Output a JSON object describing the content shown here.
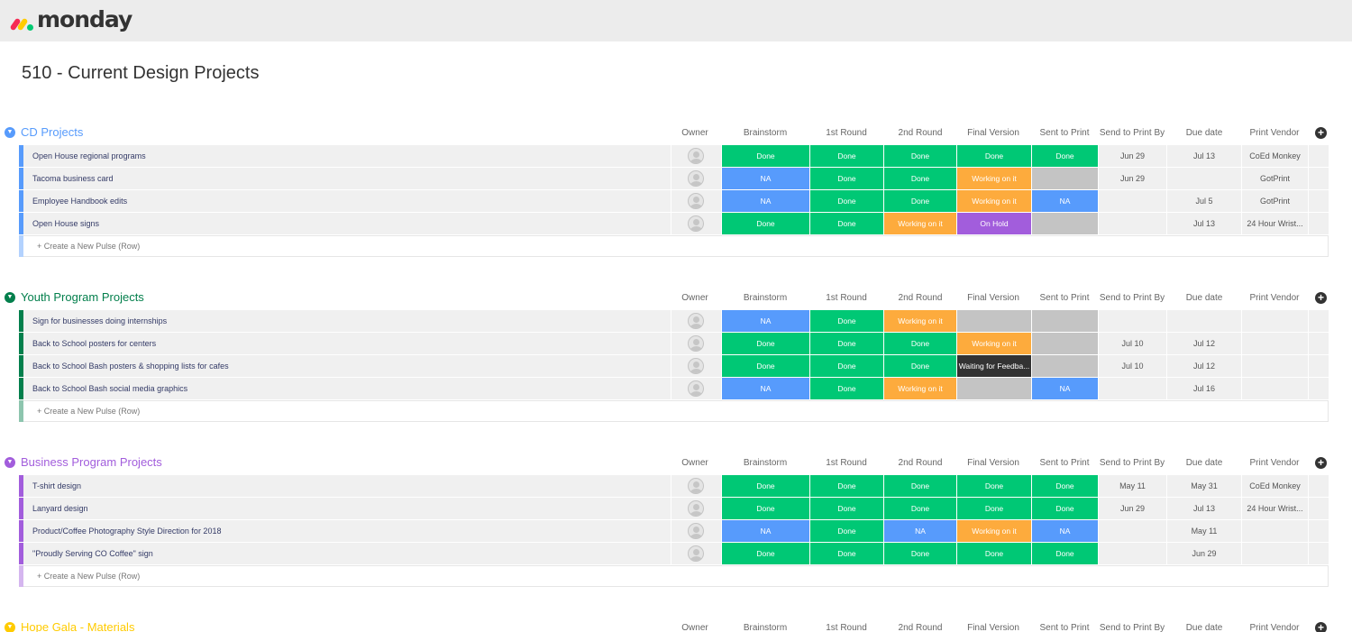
{
  "app": {
    "logo_text": "monday",
    "board_title": "510 - Current Design Projects"
  },
  "colors": {
    "done": "#00c875",
    "na": "#579bfc",
    "working": "#fdab3d",
    "on_hold": "#a25ddc",
    "waiting": "#333333",
    "empty": "#c4c4c4"
  },
  "columns": [
    "Owner",
    "Brainstorm",
    "1st Round",
    "2nd Round",
    "Final Version",
    "Sent to Print",
    "Send to Print By",
    "Due date",
    "Print Vendor"
  ],
  "create_label": "+ Create a New Pulse (Row)",
  "groups": [
    {
      "name": "CD Projects",
      "color": "#579bfc",
      "rows": [
        {
          "name": "Open House regional programs",
          "status": [
            "Done",
            "Done",
            "Done",
            "Done",
            "Done"
          ],
          "send_by": "Jun 29",
          "due": "Jul 13",
          "vendor": "CoEd Monkey"
        },
        {
          "name": "Tacoma business card",
          "status": [
            "NA",
            "Done",
            "Done",
            "Working on it",
            ""
          ],
          "send_by": "Jun 29",
          "due": "",
          "vendor": "GotPrint"
        },
        {
          "name": "Employee Handbook edits",
          "status": [
            "NA",
            "Done",
            "Done",
            "Working on it",
            "NA"
          ],
          "send_by": "",
          "due": "Jul 5",
          "vendor": "GotPrint"
        },
        {
          "name": "Open House signs",
          "status": [
            "Done",
            "Done",
            "Working on it",
            "On Hold",
            ""
          ],
          "send_by": "",
          "due": "Jul 13",
          "vendor": "24 Hour Wrist..."
        }
      ]
    },
    {
      "name": "Youth Program Projects",
      "color": "#037f4c",
      "rows": [
        {
          "name": "Sign for businesses doing internships",
          "status": [
            "NA",
            "Done",
            "Working on it",
            "",
            ""
          ],
          "send_by": "",
          "due": "",
          "vendor": ""
        },
        {
          "name": "Back to School posters for centers",
          "status": [
            "Done",
            "Done",
            "Done",
            "Working on it",
            ""
          ],
          "send_by": "Jul 10",
          "due": "Jul 12",
          "vendor": ""
        },
        {
          "name": "Back to School Bash posters & shopping lists for cafes",
          "status": [
            "Done",
            "Done",
            "Done",
            "Waiting for Feedba...",
            ""
          ],
          "send_by": "Jul 10",
          "due": "Jul 12",
          "vendor": ""
        },
        {
          "name": "Back to School Bash social media graphics",
          "status": [
            "NA",
            "Done",
            "Working on it",
            "",
            "NA"
          ],
          "send_by": "",
          "due": "Jul 16",
          "vendor": ""
        }
      ]
    },
    {
      "name": "Business Program Projects",
      "color": "#a25ddc",
      "rows": [
        {
          "name": "T-shirt design",
          "status": [
            "Done",
            "Done",
            "Done",
            "Done",
            "Done"
          ],
          "send_by": "May 11",
          "due": "May 31",
          "vendor": "CoEd Monkey"
        },
        {
          "name": "Lanyard design",
          "status": [
            "Done",
            "Done",
            "Done",
            "Done",
            "Done"
          ],
          "send_by": "Jun 29",
          "due": "Jul 13",
          "vendor": "24 Hour Wrist..."
        },
        {
          "name": "Product/Coffee Photography Style Direction for 2018",
          "status": [
            "NA",
            "Done",
            "NA",
            "Working on it",
            "NA"
          ],
          "send_by": "",
          "due": "May 11",
          "vendor": ""
        },
        {
          "name": "\"Proudly Serving CO Coffee\" sign",
          "status": [
            "Done",
            "Done",
            "Done",
            "Done",
            "Done"
          ],
          "send_by": "",
          "due": "Jun 29",
          "vendor": ""
        }
      ]
    },
    {
      "name": "Hope Gala - Materials",
      "color": "#ffcb00",
      "rows": []
    }
  ]
}
